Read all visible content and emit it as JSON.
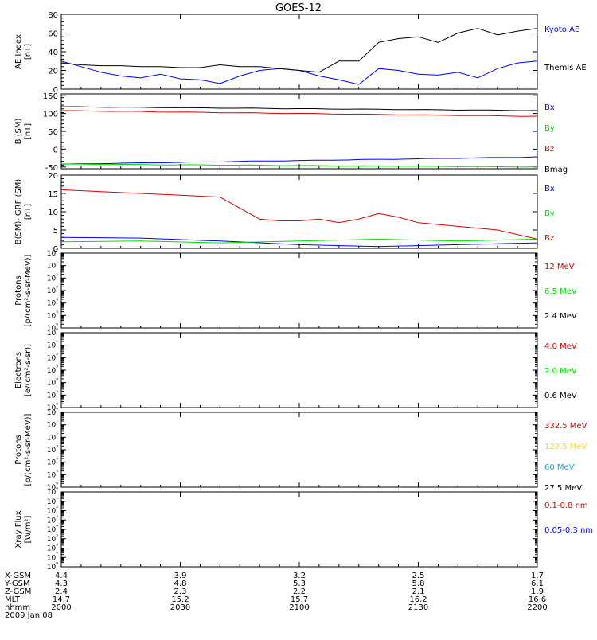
{
  "title": "GOES-12",
  "colors": {
    "black": "#000000",
    "blue": "#0000ff",
    "red": "#dd0000",
    "green": "#00dd00",
    "yellow": "#ffdd00",
    "cyan": "#00aaee"
  },
  "chart_data": [
    {
      "type": "line",
      "ylabel": [
        "AE Index",
        "[nT]"
      ],
      "ylim": [
        0,
        80
      ],
      "yticks": [
        "0",
        "20",
        "40",
        "60",
        "80"
      ],
      "yvals": [
        0,
        20,
        40,
        60,
        80
      ],
      "series": [
        {
          "name": "Kyoto AE",
          "color": "blue",
          "x": [
            0,
            5,
            10,
            15,
            20,
            25,
            30,
            35,
            40,
            45,
            50,
            55,
            60,
            65,
            70,
            75,
            80,
            85,
            90,
            95,
            100,
            105,
            110,
            115,
            120
          ],
          "y": [
            30,
            24,
            18,
            14,
            12,
            16,
            11,
            10,
            6,
            14,
            20,
            22,
            20,
            14,
            10,
            5,
            22,
            20,
            16,
            15,
            18,
            12,
            22,
            28,
            30
          ]
        },
        {
          "name": "Themis AE",
          "color": "black",
          "x": [
            0,
            5,
            10,
            15,
            20,
            25,
            30,
            35,
            40,
            45,
            50,
            55,
            60,
            65,
            70,
            75,
            80,
            85,
            90,
            95,
            100,
            105,
            110,
            115,
            120
          ],
          "y": [
            28,
            26,
            25,
            25,
            24,
            24,
            23,
            23,
            26,
            24,
            24,
            22,
            20,
            18,
            30,
            30,
            50,
            54,
            56,
            50,
            60,
            65,
            58,
            62,
            65
          ]
        }
      ]
    },
    {
      "type": "line",
      "ylabel": [
        "B (SM)",
        "[nT]"
      ],
      "ylim": [
        -55,
        155
      ],
      "yticks": [
        "-50",
        "0",
        "50",
        "100",
        "150"
      ],
      "yvals": [
        -50,
        0,
        50,
        100,
        150
      ],
      "series": [
        {
          "name": "Bx",
          "color": "blue",
          "x": [
            0,
            120
          ],
          "y": [
            -42,
            -22
          ]
        },
        {
          "name": "By",
          "color": "green",
          "x": [
            0,
            120
          ],
          "y": [
            -42,
            -50
          ]
        },
        {
          "name": "Bz",
          "color": "red",
          "x": [
            0,
            120
          ],
          "y": [
            108,
            92
          ]
        },
        {
          "name": "Bmag",
          "color": "black",
          "x": [
            0,
            120
          ],
          "y": [
            119,
            108
          ]
        }
      ]
    },
    {
      "type": "line",
      "ylabel": [
        "B(SM)-IGRF (SM)",
        "[nT]"
      ],
      "ylim": [
        0,
        20
      ],
      "yticks": [
        "0",
        "5",
        "10",
        "15",
        "20"
      ],
      "yvals": [
        0,
        5,
        10,
        15,
        20
      ],
      "series": [
        {
          "name": "Bx",
          "color": "blue",
          "x": [
            0,
            20,
            40,
            60,
            80,
            100,
            120
          ],
          "y": [
            3,
            2.8,
            2,
            1,
            0.5,
            1,
            1.5
          ]
        },
        {
          "name": "By",
          "color": "green",
          "x": [
            0,
            20,
            40,
            60,
            80,
            100,
            120
          ],
          "y": [
            1.8,
            2,
            1.5,
            2,
            2.5,
            2,
            2.5
          ]
        },
        {
          "name": "Bz",
          "color": "red",
          "x": [
            0,
            10,
            20,
            30,
            40,
            50,
            55,
            60,
            65,
            70,
            75,
            80,
            85,
            90,
            100,
            110,
            120
          ],
          "y": [
            16,
            15.5,
            15,
            14.5,
            14,
            8,
            7.5,
            7.5,
            8,
            7,
            8,
            9.5,
            8.5,
            7,
            6,
            5,
            2.5
          ]
        }
      ]
    },
    {
      "type": "line",
      "ylabel": [
        "Protons",
        "[p/(cm²-s-sr-MeV)]"
      ],
      "log": true,
      "yticks": [
        "10⁶",
        "10⁵",
        "10⁴",
        "10³",
        "10²",
        "10¹",
        "10⁰"
      ],
      "series": [
        {
          "name": "12 MeV",
          "color": "red"
        },
        {
          "name": "6.5 MeV",
          "color": "green"
        },
        {
          "name": "2.4 MeV",
          "color": "black"
        }
      ]
    },
    {
      "type": "line",
      "ylabel": [
        "Electrons",
        "[e/(cm²-s-sr)]"
      ],
      "log": true,
      "yticks": [
        "10⁶",
        "10⁵",
        "10⁴",
        "10³",
        "10²",
        "10¹",
        "10⁰"
      ],
      "series": [
        {
          "name": "4.0 MeV",
          "color": "red"
        },
        {
          "name": "2.0 MeV",
          "color": "green"
        },
        {
          "name": "0.6 MeV",
          "color": "black"
        }
      ]
    },
    {
      "type": "line",
      "ylabel": [
        "Protons",
        "[p/(cm²-s-sr-MeV)]"
      ],
      "log": true,
      "yticks": [
        "10⁶",
        "10⁵",
        "10⁴",
        "10³",
        "10²",
        "10¹",
        "10⁰"
      ],
      "series": [
        {
          "name": "332.5 MeV",
          "color": "red"
        },
        {
          "name": "122.5 MeV",
          "color": "yellow"
        },
        {
          "name": "60 MeV",
          "color": "cyan"
        },
        {
          "name": "27.5 MeV",
          "color": "black"
        }
      ]
    },
    {
      "type": "line",
      "ylabel": [
        "Xray Flux",
        "[W/m²]"
      ],
      "log": true,
      "yticks": [
        "10⁸",
        "10⁷",
        "10⁶",
        "10⁵",
        "10⁴",
        "10³",
        "10²",
        "10¹",
        "10⁰"
      ],
      "series": [
        {
          "name": "0.1-0.8 nm",
          "color": "red"
        },
        {
          "name": "0.05-0.3 nm",
          "color": "blue"
        }
      ]
    }
  ],
  "footer": {
    "row_labels": [
      "X-GSM",
      "Y-GSM",
      "Z-GSM",
      "MLT",
      "hhmm",
      "2009 Jan 08"
    ],
    "columns": [
      [
        "4.4",
        "4.3",
        "2.4",
        "14.7",
        "2000"
      ],
      [
        "3.9",
        "4.8",
        "2.3",
        "15.2",
        "2030"
      ],
      [
        "3.2",
        "5.3",
        "2.2",
        "15.7",
        "2100"
      ],
      [
        "2.5",
        "5.8",
        "2.1",
        "16.2",
        "2130"
      ],
      [
        "1.7",
        "6.1",
        "1.9",
        "16.6",
        "2200"
      ]
    ]
  }
}
